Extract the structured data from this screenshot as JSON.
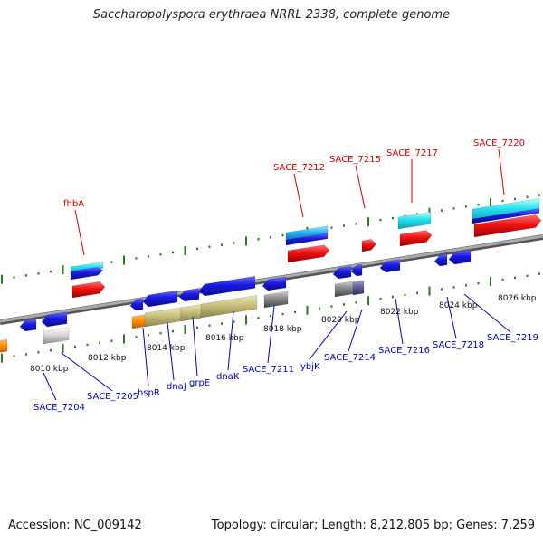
{
  "title": "Saccharopolyspora erythraea NRRL 2338, complete genome",
  "footer": {
    "accession": "Accession: NC_009142",
    "stats": "Topology: circular; Length: 8,212,805 bp; Genes: 7,259"
  },
  "colors": {
    "upper_label": "#cc0000",
    "lower_label": "#0000bb",
    "tick": "#2a7a1e",
    "backbone": "#888888",
    "gene_blue": "#1a1ae0",
    "gene_red": "#ee1111",
    "gene_cyan": "#22e0ee",
    "gene_grey": "#888888",
    "gene_olive": "#c8bf7a",
    "gene_orange": "#ff8c00"
  },
  "scale_labels": [
    "8010 kbp",
    "8012 kbp",
    "8014 kbp",
    "8016 kbp",
    "8018 kbp",
    "8020 kbp",
    "8022 kbp",
    "8024 kbp",
    "8026 kbp"
  ],
  "upper_genes": [
    "fhbA",
    "SACE_7212",
    "SACE_7215",
    "SACE_7217",
    "SACE_7220"
  ],
  "lower_genes": [
    "SACE_7204",
    "SACE_7205",
    "hspR",
    "dnaJ",
    "grpE",
    "dnaK",
    "SACE_7211",
    "ybjK",
    "SACE_7214",
    "SACE_7216",
    "SACE_7218",
    "SACE_7219"
  ]
}
